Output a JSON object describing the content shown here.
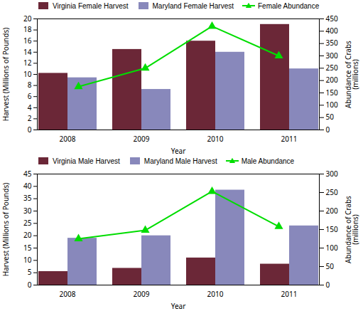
{
  "chart_data": [
    {
      "type": "bar",
      "categories": [
        "2008",
        "2009",
        "2010",
        "2011"
      ],
      "series": [
        {
          "name": "Virginia Female Harvest",
          "color": "#6B2737",
          "values": [
            10.2,
            14.5,
            16.0,
            19.0
          ]
        },
        {
          "name": "Maryland Female Harvest",
          "color": "#8888BB",
          "values": [
            9.4,
            7.3,
            14.0,
            11.0
          ]
        },
        {
          "name": "Female Abundance",
          "color": "#00DD00",
          "type": "line",
          "marker": "triangle",
          "axis": "y2",
          "values": [
            175,
            250,
            420,
            300
          ]
        }
      ],
      "x_label": "Year",
      "y_label": "Harvest (Millions of Pounds)",
      "y2_label": "Abundance of Crabs\n(millions)",
      "ylim": [
        0,
        20
      ],
      "yticks": [
        0,
        2,
        4,
        6,
        8,
        10,
        12,
        14,
        16,
        18,
        20
      ],
      "y2lim": [
        0,
        450
      ],
      "y2ticks": [
        0,
        50,
        100,
        150,
        200,
        250,
        300,
        350,
        400,
        450
      ],
      "legend": "upper left",
      "grid": false
    },
    {
      "type": "bar",
      "categories": [
        "2008",
        "2009",
        "2010",
        "2011"
      ],
      "series": [
        {
          "name": "Virginia Male Harvest",
          "color": "#6B2737",
          "values": [
            5.5,
            6.8,
            11.0,
            8.5
          ]
        },
        {
          "name": "Maryland Male Harvest",
          "color": "#8888BB",
          "values": [
            19.0,
            20.0,
            38.5,
            24.0
          ]
        },
        {
          "name": "Male Abundance",
          "color": "#00DD00",
          "type": "line",
          "marker": "triangle",
          "axis": "y2",
          "values": [
            125,
            148,
            253,
            158
          ]
        }
      ],
      "x_label": "Year",
      "y_label": "Harvest (Millions of Pounds)",
      "y2_label": "Abundance of Crabs\n(millions)",
      "ylim": [
        0,
        45
      ],
      "yticks": [
        0,
        5,
        10,
        15,
        20,
        25,
        30,
        35,
        40,
        45
      ],
      "y2lim": [
        0,
        300
      ],
      "y2ticks": [
        0,
        50,
        100,
        150,
        200,
        250,
        300
      ],
      "legend": "upper left",
      "grid": false
    }
  ]
}
